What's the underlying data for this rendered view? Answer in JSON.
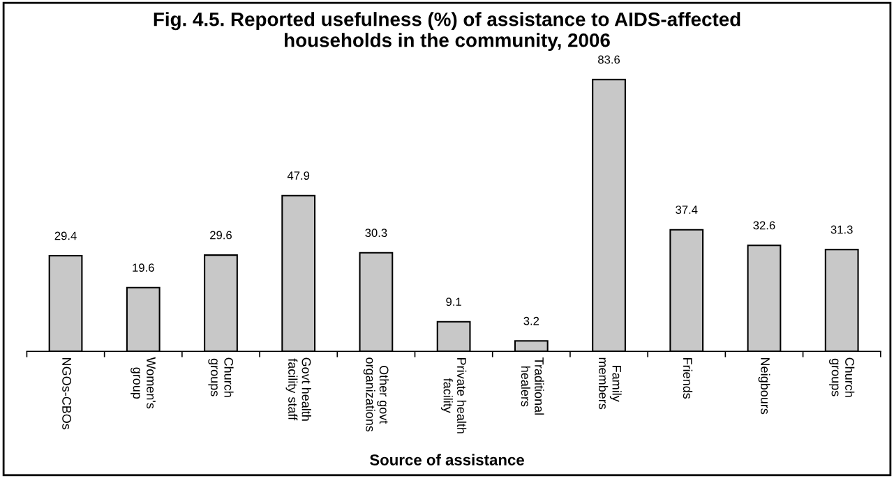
{
  "chart_data": {
    "type": "bar",
    "title": "Fig. 4.5. Reported usefulness (%) of assistance to AIDS-affected\nhouseholds in the community, 2006",
    "xlabel": "Source of assistance",
    "categories": [
      "NGOs-CBOs",
      "Women's\ngroup",
      "Church\ngroups",
      "Govt health\nfacility staff",
      "Other govt\norganizations",
      "Private health\nfacility",
      "Traditional\nhealers",
      "Family\nmembers",
      "Friends",
      "Neigbours",
      "Church\ngroups"
    ],
    "values": [
      29.4,
      19.6,
      29.6,
      47.9,
      30.3,
      9.1,
      3.2,
      83.6,
      37.4,
      32.6,
      31.3
    ],
    "color": "#c8c8c8",
    "data_labels": true,
    "grid": false
  }
}
